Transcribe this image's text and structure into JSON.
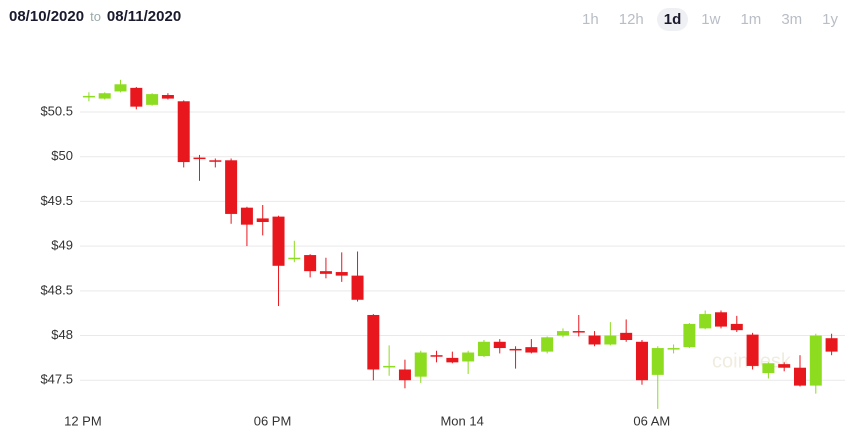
{
  "header": {
    "from": "08/10/2020",
    "to_label": "to",
    "to": "08/11/2020",
    "ranges": [
      "1h",
      "12h",
      "1d",
      "1w",
      "1m",
      "3m",
      "1y"
    ],
    "active_range": "1d"
  },
  "chart_data": {
    "type": "candlestick",
    "watermark": "coindesk",
    "categories": [
      "12 PM",
      null,
      null,
      null,
      null,
      null,
      null,
      null,
      null,
      null,
      null,
      null,
      "06 PM",
      null,
      null,
      null,
      null,
      null,
      null,
      null,
      null,
      null,
      null,
      null,
      "Mon 14",
      null,
      null,
      null,
      null,
      null,
      null,
      null,
      null,
      null,
      null,
      null,
      "06 AM",
      null,
      null,
      null,
      null,
      null,
      null,
      null,
      null,
      null,
      null,
      null
    ],
    "open": [
      50.68,
      50.65,
      50.73,
      50.77,
      50.58,
      50.69,
      50.62,
      49.99,
      49.96,
      49.96,
      49.43,
      49.31,
      49.33,
      48.86,
      48.9,
      48.72,
      48.71,
      48.67,
      48.23,
      47.65,
      47.62,
      47.54,
      47.78,
      47.75,
      47.71,
      47.77,
      47.93,
      47.85,
      47.87,
      47.82,
      48.0,
      48.05,
      48.0,
      47.9,
      48.03,
      47.93,
      47.56,
      47.85,
      47.87,
      48.08,
      48.26,
      48.13,
      48.01,
      47.58,
      47.68,
      47.64,
      47.44,
      47.97
    ],
    "high": [
      50.72,
      50.72,
      50.86,
      50.78,
      50.71,
      50.71,
      50.63,
      50.02,
      49.98,
      49.98,
      49.44,
      49.46,
      49.34,
      49.06,
      48.91,
      48.87,
      48.93,
      48.94,
      48.24,
      47.89,
      47.73,
      47.83,
      47.83,
      47.82,
      47.83,
      47.95,
      47.96,
      47.88,
      47.96,
      47.99,
      48.08,
      48.23,
      48.05,
      48.15,
      48.18,
      47.95,
      47.88,
      47.9,
      48.14,
      48.28,
      48.28,
      48.22,
      48.03,
      47.7,
      47.7,
      47.78,
      48.02,
      48.02
    ],
    "low": [
      50.62,
      50.64,
      50.72,
      50.53,
      50.57,
      50.64,
      49.88,
      49.73,
      49.88,
      49.25,
      49.0,
      49.12,
      48.33,
      48.82,
      48.65,
      48.64,
      48.6,
      48.38,
      47.5,
      47.55,
      47.41,
      47.47,
      47.7,
      47.69,
      47.57,
      47.76,
      47.8,
      47.63,
      47.8,
      47.8,
      47.98,
      47.99,
      47.88,
      47.89,
      47.93,
      47.45,
      47.18,
      47.8,
      47.86,
      48.07,
      48.08,
      48.04,
      47.62,
      47.52,
      47.6,
      47.43,
      47.35,
      47.78
    ],
    "close": [
      50.68,
      50.71,
      50.81,
      50.56,
      50.7,
      50.65,
      49.94,
      49.98,
      49.95,
      49.36,
      49.24,
      49.27,
      48.78,
      48.87,
      48.72,
      48.69,
      48.67,
      48.4,
      47.62,
      47.66,
      47.5,
      47.81,
      47.77,
      47.7,
      47.81,
      47.93,
      47.86,
      47.84,
      47.81,
      47.98,
      48.05,
      48.04,
      47.9,
      48.0,
      47.95,
      47.5,
      47.86,
      47.86,
      48.13,
      48.24,
      48.1,
      48.06,
      47.66,
      47.69,
      47.64,
      47.44,
      48.0,
      47.82
    ],
    "up_color": "#8ddc1f",
    "down_color": "#e8161d",
    "ylim": [
      47.1,
      51.0
    ],
    "yticks": [
      {
        "value": 47.5,
        "label": "$47.5"
      },
      {
        "value": 48,
        "label": "$48"
      },
      {
        "value": 48.5,
        "label": "$48.5"
      },
      {
        "value": 49,
        "label": "$49"
      },
      {
        "value": 49.5,
        "label": "$49.5"
      },
      {
        "value": 50,
        "label": "$50"
      },
      {
        "value": 50.5,
        "label": "$50.5"
      }
    ],
    "grid": true
  }
}
